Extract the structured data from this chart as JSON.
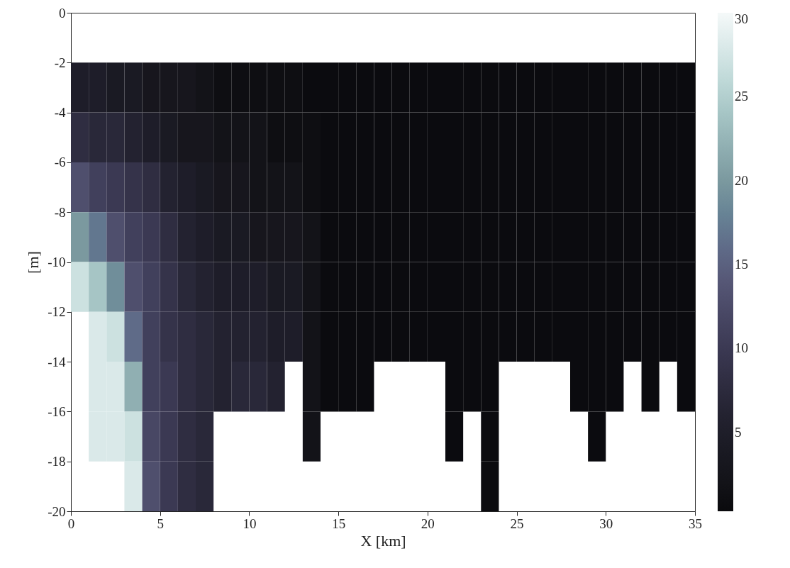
{
  "chart_data": {
    "type": "heatmap",
    "xlabel": "X [km]",
    "ylabel": "[m]",
    "x": [
      0.5,
      1.5,
      2.5,
      3.5,
      4.5,
      5.5,
      6.5,
      7.5,
      8.5,
      9.5,
      10.5,
      11.5,
      12.5,
      13.5,
      14.5,
      15.5,
      16.5,
      17.5,
      18.5,
      19.5,
      20.5,
      21.5,
      22.5,
      23.5,
      24.5,
      25.5,
      26.5,
      27.5,
      28.5,
      29.5,
      30.5,
      31.5,
      32.5,
      33.5,
      34.5
    ],
    "y": [
      -3,
      -5,
      -7,
      -9,
      -11,
      -13,
      -15,
      -17,
      -19
    ],
    "cells": [
      [
        5,
        5,
        4,
        4,
        3,
        3,
        3,
        2,
        1,
        1,
        1,
        1,
        1,
        0.5,
        0.5,
        0.5,
        0.5,
        0.5,
        0.5,
        0.5,
        0.5,
        0.5,
        0.5,
        0.5,
        0.5,
        0.5,
        0.5,
        0.5,
        0.5,
        0.5,
        0.5,
        0.5,
        0.5,
        0.5,
        0.5
      ],
      [
        8,
        7,
        7,
        6,
        5,
        4,
        3,
        3,
        2,
        2,
        2,
        1,
        1,
        1,
        0.5,
        0.5,
        0.5,
        0.5,
        0.5,
        0.5,
        0.5,
        0.5,
        0.5,
        0.5,
        0.5,
        0.5,
        0.5,
        0.5,
        0.5,
        0.5,
        0.5,
        0.5,
        0.5,
        0.5,
        0.5
      ],
      [
        13,
        11,
        10,
        9,
        8,
        6,
        5,
        4,
        3,
        3,
        2,
        2,
        2,
        1,
        0.5,
        0.5,
        0.5,
        0.5,
        0.5,
        0.5,
        0.5,
        0.5,
        0.5,
        0.5,
        0.5,
        0.5,
        0.5,
        0.5,
        0.5,
        0.5,
        0.5,
        0.5,
        0.5,
        0.5,
        0.5
      ],
      [
        20,
        17,
        13,
        11,
        10,
        8,
        6,
        5,
        4,
        4,
        3,
        3,
        3,
        2,
        0.5,
        0.5,
        0.5,
        0.5,
        0.5,
        0.5,
        0.5,
        0.5,
        0.5,
        0.5,
        0.5,
        0.5,
        0.5,
        0.5,
        0.5,
        0.5,
        0.5,
        0.5,
        0.5,
        0.5,
        0.5
      ],
      [
        27,
        24,
        19,
        13,
        11,
        9,
        7,
        6,
        5,
        5,
        5,
        4,
        4,
        2,
        0.5,
        0.5,
        0.5,
        0.5,
        0.5,
        0.5,
        0.5,
        0.5,
        0.5,
        0.5,
        0.5,
        0.5,
        0.5,
        0.5,
        0.5,
        0.5,
        0.5,
        0.5,
        0.5,
        0.5,
        0.5
      ],
      [
        null,
        28,
        27,
        16,
        11,
        9,
        8,
        7,
        6,
        6,
        6,
        5,
        5,
        2,
        0.5,
        0.5,
        0.5,
        0.5,
        0.5,
        0.5,
        0.5,
        0.5,
        0.5,
        0.5,
        0.5,
        0.5,
        0.5,
        0.5,
        0.5,
        0.5,
        0.5,
        0.5,
        0.5,
        0.5,
        0.5
      ],
      [
        null,
        28,
        28,
        22,
        11,
        10,
        8,
        7,
        6,
        7,
        7,
        6,
        null,
        2,
        0.5,
        0.5,
        0.5,
        null,
        null,
        null,
        null,
        0.5,
        0.5,
        0.5,
        null,
        null,
        null,
        null,
        0.5,
        0.5,
        0.5,
        null,
        0.5,
        null,
        0.5
      ],
      [
        null,
        28,
        28,
        27,
        12,
        10,
        8,
        7,
        null,
        null,
        null,
        null,
        null,
        2,
        null,
        null,
        null,
        null,
        null,
        null,
        null,
        0.5,
        null,
        0.5,
        null,
        null,
        null,
        null,
        null,
        0.5,
        null,
        null,
        null,
        null,
        null
      ],
      [
        null,
        null,
        null,
        28,
        13,
        10,
        8,
        7,
        null,
        null,
        null,
        null,
        null,
        null,
        null,
        null,
        null,
        null,
        null,
        null,
        null,
        null,
        null,
        0.5,
        null,
        null,
        null,
        null,
        null,
        null,
        null,
        null,
        null,
        null,
        null
      ]
    ],
    "xlim": [
      0,
      35
    ],
    "xticks": [
      0,
      5,
      10,
      15,
      20,
      25,
      30,
      35
    ],
    "ylim": [
      -20,
      0
    ],
    "yticks": [
      -20,
      -18,
      -16,
      -14,
      -12,
      -10,
      -8,
      -6,
      -4,
      -2,
      0
    ],
    "clim": [
      0.3,
      30
    ],
    "cticks": [
      5,
      10,
      15,
      20,
      25,
      30
    ]
  }
}
